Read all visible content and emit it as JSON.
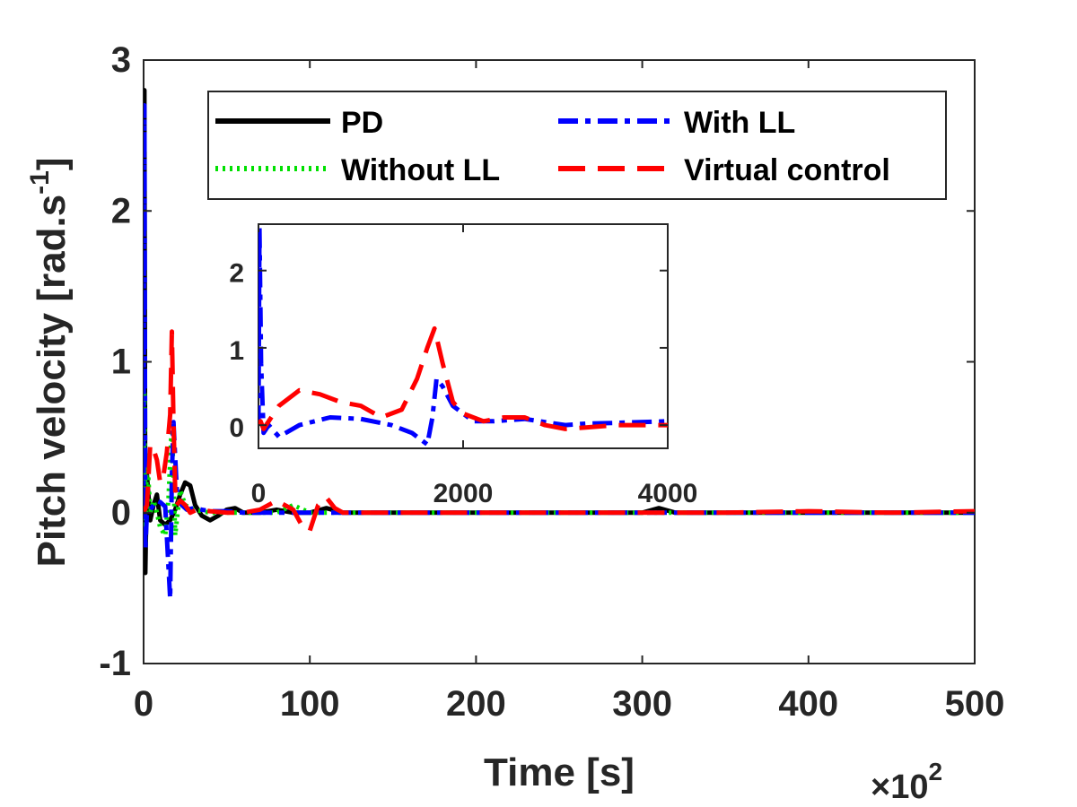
{
  "chart_data": {
    "type": "line",
    "xlabel": "Time [s]",
    "ylabel": "Pitch velocity [rad.s",
    "ylabel_exp": "-1",
    "ylabel_close": "]",
    "x_multiplier_base": "×10",
    "x_multiplier_exp": "2",
    "xlim": [
      0,
      500
    ],
    "ylim": [
      -1,
      3
    ],
    "xticks": [
      "0",
      "100",
      "200",
      "300",
      "400",
      "500"
    ],
    "yticks": [
      "-1",
      "0",
      "1",
      "2",
      "3"
    ],
    "grid": false,
    "legend_position": "top-right",
    "series": [
      {
        "name": "PD",
        "color": "#000000",
        "style": "solid",
        "x": [
          0,
          0.5,
          1,
          2,
          4,
          6,
          8,
          10,
          13,
          16,
          19,
          22,
          25,
          28,
          31,
          35,
          40,
          45,
          50,
          55,
          60,
          70,
          80,
          90,
          100,
          110,
          120,
          150,
          200,
          250,
          300,
          310,
          320,
          350,
          400,
          450,
          500
        ],
        "y": [
          0,
          2.8,
          -0.4,
          0.25,
          -0.05,
          0.05,
          0.12,
          -0.05,
          -0.08,
          -0.05,
          0.02,
          0.12,
          0.2,
          0.18,
          0.05,
          -0.02,
          -0.05,
          -0.02,
          0.02,
          0.03,
          0.0,
          0.0,
          0.02,
          0.0,
          0.0,
          0.03,
          0.0,
          0.0,
          0.0,
          0.0,
          0.0,
          0.03,
          0.0,
          0.0,
          0.0,
          0.0,
          0.0
        ]
      },
      {
        "name": "Without LL",
        "color": "#00e000",
        "style": "dotted",
        "x": [
          0,
          0.5,
          1,
          2,
          4,
          6,
          8,
          10,
          13,
          15,
          17,
          19,
          22,
          25,
          30,
          40,
          50,
          60,
          80,
          90,
          100,
          150,
          200,
          300,
          400,
          500
        ],
        "y": [
          0,
          0.8,
          -0.2,
          0.4,
          0.0,
          0.08,
          0.0,
          -0.1,
          -0.15,
          0.1,
          0.6,
          -0.15,
          0.15,
          0.05,
          0.02,
          0.0,
          0.0,
          0.0,
          0.0,
          0.05,
          0.0,
          0.0,
          0.0,
          0.0,
          0.0,
          0.0
        ]
      },
      {
        "name": "With LL",
        "color": "#0000ff",
        "style": "dashdot",
        "x": [
          0,
          0.5,
          1,
          2,
          4,
          6,
          8,
          10,
          13,
          16,
          17,
          18,
          20,
          23,
          26,
          30,
          35,
          40,
          50,
          60,
          80,
          100,
          150,
          200,
          300,
          400,
          500
        ],
        "y": [
          0,
          2.7,
          -0.25,
          0.0,
          0.02,
          0.05,
          0.08,
          0.07,
          0.04,
          -0.57,
          0.25,
          0.6,
          0.15,
          0.05,
          0.02,
          0.03,
          0.02,
          0.01,
          0.01,
          0.0,
          0.0,
          0.0,
          0.0,
          0.0,
          0.0,
          0.0,
          0.0
        ]
      },
      {
        "name": "Virtual control",
        "color": "#ff0000",
        "style": "dashed",
        "x": [
          0,
          2,
          4,
          6,
          8,
          10,
          12,
          14,
          16,
          17,
          18,
          19,
          20,
          22,
          25,
          28,
          32,
          40,
          50,
          60,
          70,
          80,
          90,
          95,
          100,
          105,
          110,
          115,
          120,
          150,
          200,
          250,
          300,
          350,
          400,
          450,
          500
        ],
        "y": [
          0,
          0.05,
          0.45,
          0.42,
          0.35,
          0.2,
          0.25,
          0.4,
          0.65,
          1.2,
          0.6,
          0.15,
          0.05,
          0.08,
          0.05,
          0.0,
          0.02,
          0.01,
          0.0,
          0.0,
          0.02,
          0.08,
          0.02,
          -0.08,
          -0.12,
          0.05,
          0.1,
          0.03,
          0.0,
          0.0,
          0.0,
          0.0,
          0.0,
          0.0,
          0.01,
          0.0,
          0.01
        ]
      }
    ],
    "inset": {
      "xlim": [
        0,
        4000
      ],
      "ylim": [
        -0.3,
        2.6
      ],
      "xticks": [
        "0",
        "2000",
        "4000"
      ],
      "yticks": [
        "0",
        "1",
        "2"
      ],
      "series": [
        {
          "name": "With LL",
          "color": "#0000ff",
          "style": "dashdot",
          "x": [
            0,
            10,
            25,
            50,
            100,
            200,
            400,
            700,
            1000,
            1300,
            1500,
            1600,
            1650,
            1700,
            1740,
            1800,
            1900,
            2100,
            2300,
            2600,
            2800,
            3000,
            3200,
            3500,
            4000
          ],
          "y": [
            0,
            2.55,
            0.8,
            -0.1,
            0.0,
            -0.15,
            0.0,
            0.1,
            0.08,
            0.0,
            -0.1,
            -0.2,
            -0.25,
            0.1,
            0.6,
            0.5,
            0.25,
            0.05,
            0.05,
            0.08,
            0.04,
            0.0,
            0.02,
            0.03,
            0.05
          ]
        },
        {
          "name": "Virtual control",
          "color": "#ff0000",
          "style": "dashed",
          "x": [
            0,
            20,
            50,
            100,
            200,
            400,
            600,
            800,
            1000,
            1200,
            1400,
            1550,
            1650,
            1720,
            1800,
            1900,
            2000,
            2200,
            2400,
            2600,
            2800,
            3000,
            3200,
            3500,
            4000
          ],
          "y": [
            0,
            0.05,
            -0.05,
            0.05,
            0.25,
            0.45,
            0.4,
            0.3,
            0.25,
            0.1,
            0.2,
            0.6,
            1.0,
            1.25,
            0.8,
            0.3,
            0.15,
            0.05,
            0.1,
            0.1,
            0.0,
            -0.05,
            -0.03,
            0.0,
            0.0
          ]
        }
      ]
    }
  }
}
